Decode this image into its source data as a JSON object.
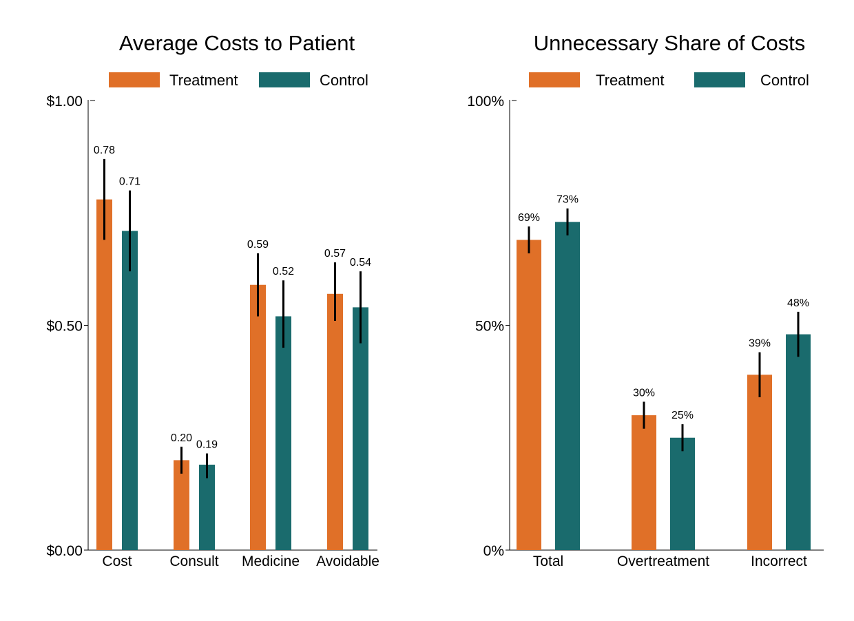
{
  "colors": {
    "treatment": "#E07028",
    "control": "#1A6B6D",
    "axis": "#000000"
  },
  "chart_data": [
    {
      "type": "bar",
      "title": "Average Costs to Patient",
      "categories": [
        "Cost",
        "Consult",
        "Medicine",
        "Avoidable"
      ],
      "ylim": [
        0,
        1
      ],
      "yticks": [
        0,
        0.5,
        1
      ],
      "ytick_labels": [
        "$0.00",
        "$0.50",
        "$1.00"
      ],
      "legend": "top-center",
      "grid": false,
      "series": [
        {
          "name": "Treatment",
          "color_key": "treatment",
          "values": [
            0.78,
            0.2,
            0.59,
            0.57
          ],
          "ci_low": [
            0.69,
            0.17,
            0.52,
            0.51
          ],
          "ci_high": [
            0.87,
            0.23,
            0.66,
            0.64
          ],
          "labels": [
            "0.78",
            "0.20",
            "0.59",
            "0.57"
          ]
        },
        {
          "name": "Control",
          "color_key": "control",
          "values": [
            0.71,
            0.19,
            0.52,
            0.54
          ],
          "ci_low": [
            0.62,
            0.16,
            0.45,
            0.46
          ],
          "ci_high": [
            0.8,
            0.215,
            0.6,
            0.62
          ],
          "labels": [
            "0.71",
            "0.19",
            "0.52",
            "0.54"
          ]
        }
      ]
    },
    {
      "type": "bar",
      "title": "Unnecessary Share of Costs",
      "categories": [
        "Total",
        "Overtreatment",
        "Incorrect"
      ],
      "ylim": [
        0,
        100
      ],
      "yticks": [
        0,
        50,
        100
      ],
      "ytick_labels": [
        "0%",
        "50%",
        "100%"
      ],
      "legend": "top-center",
      "grid": false,
      "series": [
        {
          "name": "Treatment",
          "color_key": "treatment",
          "values": [
            69,
            30,
            39
          ],
          "ci_low": [
            66,
            27,
            34
          ],
          "ci_high": [
            72,
            33,
            44
          ],
          "labels": [
            "69%",
            "30%",
            "39%"
          ]
        },
        {
          "name": "Control",
          "color_key": "control",
          "values": [
            73,
            25,
            48
          ],
          "ci_low": [
            70,
            22,
            43
          ],
          "ci_high": [
            76,
            28,
            53
          ],
          "labels": [
            "73%",
            "25%",
            "48%"
          ]
        }
      ]
    }
  ]
}
